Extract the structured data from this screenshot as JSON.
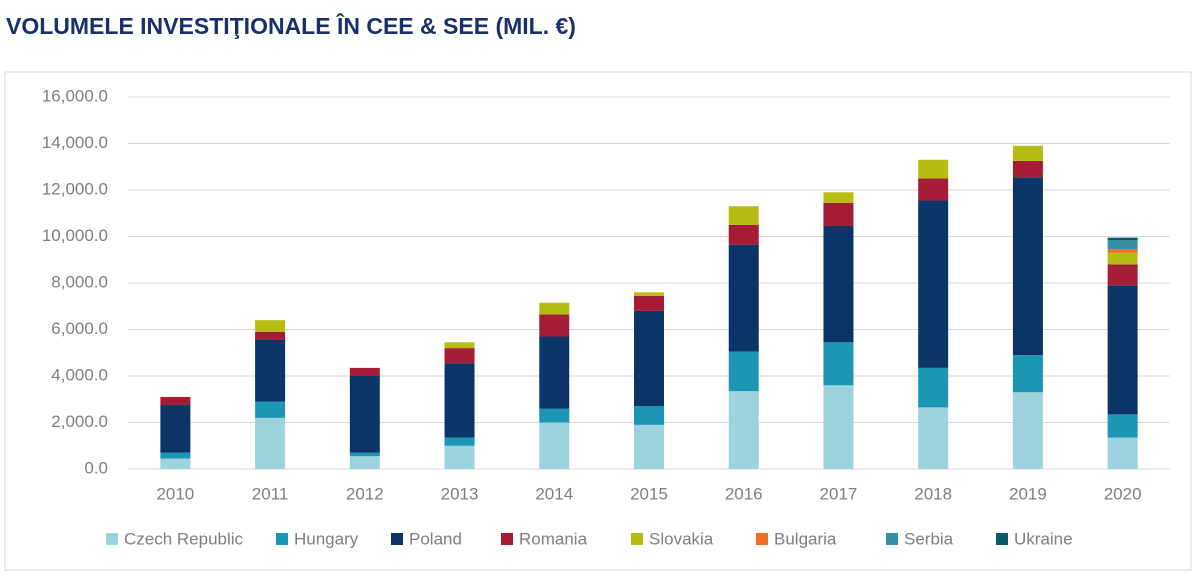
{
  "chart_data": {
    "type": "stacked_bar",
    "title": "VOLUMELE INVESTIŢIONALE ÎN CEE & SEE (MIL. €)",
    "categories": [
      "2010",
      "2011",
      "2012",
      "2013",
      "2014",
      "2015",
      "2016",
      "2017",
      "2018",
      "2019",
      "2020"
    ],
    "series": [
      {
        "name": "Czech Republic",
        "color": "#9dd3dc",
        "values": [
          450,
          2200,
          550,
          1000,
          2000,
          1900,
          3350,
          3600,
          2650,
          3300,
          1350
        ]
      },
      {
        "name": "Hungary",
        "color": "#1b96b5",
        "values": [
          250,
          700,
          150,
          350,
          600,
          800,
          1700,
          1850,
          1700,
          1600,
          1000
        ]
      },
      {
        "name": "Poland",
        "color": "#0b3566",
        "values": [
          2050,
          2650,
          3300,
          3200,
          3100,
          4100,
          4600,
          5000,
          7200,
          7650,
          5550
        ]
      },
      {
        "name": "Romania",
        "color": "#a51c36",
        "values": [
          350,
          350,
          350,
          650,
          950,
          650,
          850,
          1000,
          950,
          700,
          900
        ]
      },
      {
        "name": "Slovakia",
        "color": "#b5bd12",
        "values": [
          0,
          500,
          0,
          250,
          500,
          150,
          800,
          450,
          800,
          650,
          500
        ]
      },
      {
        "name": "Bulgaria",
        "color": "#f26f21",
        "values": [
          0,
          0,
          0,
          0,
          0,
          0,
          0,
          0,
          0,
          0,
          150
        ]
      },
      {
        "name": "Serbia",
        "color": "#3591a4",
        "values": [
          0,
          0,
          0,
          0,
          0,
          0,
          0,
          0,
          0,
          0,
          400
        ]
      },
      {
        "name": "Ukraine",
        "color": "#0a5868",
        "values": [
          0,
          0,
          0,
          0,
          0,
          0,
          0,
          0,
          0,
          0,
          100
        ]
      }
    ],
    "ylim": [
      0,
      16000
    ],
    "yticks": [
      {
        "value": 0,
        "label": "0.0"
      },
      {
        "value": 2000,
        "label": "2,000.0"
      },
      {
        "value": 4000,
        "label": "4,000.0"
      },
      {
        "value": 6000,
        "label": "6,000.0"
      },
      {
        "value": 8000,
        "label": "8,000.0"
      },
      {
        "value": 10000,
        "label": "10,000.0"
      },
      {
        "value": 12000,
        "label": "12,000.0"
      },
      {
        "value": 14000,
        "label": "14,000.0"
      },
      {
        "value": 16000,
        "label": "16,000.0"
      }
    ],
    "grid": true,
    "legend": "bottom"
  }
}
